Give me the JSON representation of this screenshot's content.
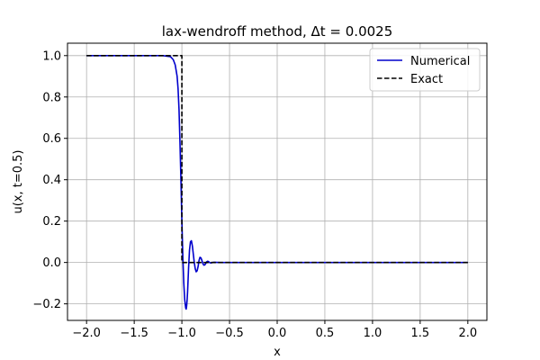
{
  "chart_data": {
    "type": "line",
    "title": "lax-wendroff method, Δt = 0.0025",
    "xlabel": "x",
    "ylabel": "u(x, t=0.5)",
    "xlim": [
      -2.2,
      2.2
    ],
    "ylim": [
      -0.28,
      1.06
    ],
    "xticks": [
      -2.0,
      -1.5,
      -1.0,
      -0.5,
      0.0,
      0.5,
      1.0,
      1.5,
      2.0
    ],
    "xtick_labels": [
      "−2.0",
      "−1.5",
      "−1.0",
      "−0.5",
      "0.0",
      "0.5",
      "1.0",
      "1.5",
      "2.0"
    ],
    "yticks": [
      -0.2,
      0.0,
      0.2,
      0.4,
      0.6,
      0.8,
      1.0
    ],
    "ytick_labels": [
      "−0.2",
      "0.0",
      "0.2",
      "0.4",
      "0.6",
      "0.8",
      "1.0"
    ],
    "grid": true,
    "legend_position": "top-right",
    "series": [
      {
        "name": "Numerical",
        "color": "#0000cc",
        "style": "solid",
        "x": [
          -2.0,
          -1.2,
          -1.12,
          -1.09,
          -1.07,
          -1.05,
          -1.04,
          -1.03,
          -1.02,
          -1.01,
          -1.0,
          -0.99,
          -0.98,
          -0.97,
          -0.96,
          -0.955,
          -0.95,
          -0.945,
          -0.94,
          -0.93,
          -0.92,
          -0.91,
          -0.9,
          -0.89,
          -0.88,
          -0.87,
          -0.86,
          -0.85,
          -0.84,
          -0.83,
          -0.82,
          -0.81,
          -0.8,
          -0.79,
          -0.78,
          -0.77,
          -0.76,
          -0.75,
          -0.74,
          -0.73,
          -0.72,
          -0.71,
          -0.7,
          -0.69,
          -0.68,
          -0.66,
          -0.6,
          0.0,
          1.0,
          2.0
        ],
        "y": [
          1.0,
          1.0,
          0.995,
          0.98,
          0.955,
          0.9,
          0.84,
          0.74,
          0.58,
          0.4,
          0.2,
          0.03,
          -0.1,
          -0.18,
          -0.22,
          -0.225,
          -0.21,
          -0.18,
          -0.14,
          -0.03,
          0.06,
          0.1,
          0.105,
          0.08,
          0.04,
          0.0,
          -0.03,
          -0.045,
          -0.04,
          -0.02,
          0.01,
          0.025,
          0.022,
          0.01,
          -0.005,
          -0.013,
          -0.012,
          -0.005,
          0.003,
          0.006,
          0.004,
          0.0,
          -0.002,
          -0.002,
          0.0,
          0.001,
          0.0,
          0.0,
          0.0,
          0.0
        ]
      },
      {
        "name": "Exact",
        "color": "#000000",
        "style": "dashed",
        "x": [
          -2.0,
          -1.0,
          -1.0,
          2.0
        ],
        "y": [
          1.0,
          1.0,
          0.0,
          0.0
        ]
      }
    ]
  }
}
